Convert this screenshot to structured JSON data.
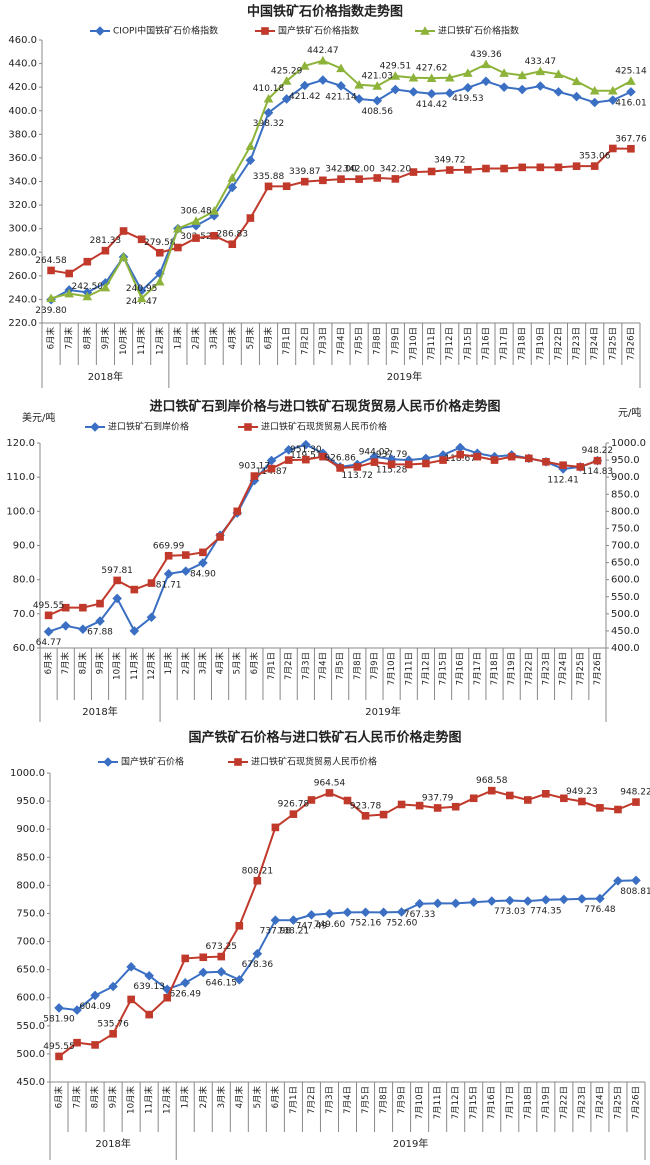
{
  "chart_data": [
    {
      "type": "line",
      "title": "中国铁矿石价格指数走势图",
      "categories": [
        "6月末",
        "7月末",
        "8月末",
        "9月末",
        "10月末",
        "11月末",
        "12月末",
        "1月末",
        "2月末",
        "3月末",
        "4月末",
        "5月末",
        "6月末",
        "7月1日",
        "7月2日",
        "7月3日",
        "7月4日",
        "7月5日",
        "7月8日",
        "7月9日",
        "7月10日",
        "7月11日",
        "7月12日",
        "7月15日",
        "7月16日",
        "7月17日",
        "7月18日",
        "7月19日",
        "7月22日",
        "7月23日",
        "7月24日",
        "7月25日",
        "7月26日"
      ],
      "x_groups": [
        {
          "label": "2018年",
          "size": 7
        },
        {
          "label": "2019年",
          "size": 26
        }
      ],
      "ylim": [
        220,
        460
      ],
      "yticks": [
        {
          "value": 220,
          "label": "220.0"
        },
        {
          "value": 240,
          "label": "240.0"
        },
        {
          "value": 260,
          "label": "260.0"
        },
        {
          "value": 280,
          "label": "280.0"
        },
        {
          "value": 300,
          "label": "300.0"
        },
        {
          "value": 320,
          "label": "320.0"
        },
        {
          "value": 340,
          "label": "340.0"
        },
        {
          "value": 360,
          "label": "360.0"
        },
        {
          "value": 380,
          "label": "380.0"
        },
        {
          "value": 400,
          "label": "400.0"
        },
        {
          "value": 420,
          "label": "420.0"
        },
        {
          "value": 440,
          "label": "440.0"
        },
        {
          "value": 460,
          "label": "460.0"
        }
      ],
      "series": [
        {
          "name": "CIOPI中国铁矿石价格指数",
          "color": "#3a6fc4",
          "marker": "diamond",
          "values": [
            239.8,
            248,
            246,
            254,
            276,
            247.47,
            262,
            300,
            302.52,
            311,
            335,
            358,
            398.32,
            410,
            421.42,
            426,
            421.14,
            410,
            408.56,
            418,
            416,
            414.42,
            415,
            419.53,
            425,
            420,
            418,
            421,
            416,
            412,
            407,
            409,
            416.01
          ],
          "value_labels": [
            "239.80",
            null,
            null,
            null,
            null,
            "247.47",
            null,
            null,
            "302.52",
            null,
            null,
            null,
            "398.32",
            null,
            "421.42",
            null,
            "421.14",
            null,
            "408.56",
            null,
            null,
            "414.42",
            null,
            "419.53",
            null,
            null,
            null,
            null,
            null,
            null,
            null,
            null,
            "416.01"
          ]
        },
        {
          "name": "国产铁矿石价格指数",
          "color": "#c0392b",
          "marker": "square",
          "values": [
            264.58,
            262,
            272,
            281.33,
            298,
            291,
            279.58,
            284,
            292,
            294,
            286.83,
            309,
            335.88,
            336,
            339.87,
            341,
            342,
            342,
            343,
            342.2,
            348,
            348.5,
            349.72,
            350,
            351,
            351,
            352,
            352,
            352,
            353,
            353.06,
            368,
            367.76
          ],
          "value_labels": [
            "264.58",
            null,
            null,
            "281.33",
            null,
            null,
            "279.58",
            null,
            null,
            null,
            "286.83",
            null,
            "335.88",
            null,
            "339.87",
            null,
            "342.00",
            "342.00",
            null,
            "342.20",
            null,
            null,
            "349.72",
            null,
            null,
            null,
            null,
            null,
            null,
            null,
            "353.06",
            null,
            "367.76"
          ]
        },
        {
          "name": "进口铁矿石价格指数",
          "color": "#8db33a",
          "marker": "triangle",
          "values": [
            241,
            245,
            242.5,
            250,
            276,
            240.95,
            255,
            300,
            306.48,
            315,
            343,
            370,
            410.18,
            425.29,
            438,
            442.47,
            436,
            422,
            421.03,
            429.51,
            428,
            427.62,
            428,
            432,
            439.36,
            432,
            430,
            433.47,
            431,
            425,
            417,
            417,
            425.14
          ],
          "value_labels": [
            null,
            null,
            "242.50",
            null,
            null,
            "240.95",
            null,
            null,
            "306.48",
            null,
            null,
            null,
            "410.18",
            "425.29",
            null,
            "442.47",
            null,
            null,
            "421.03",
            "429.51",
            null,
            "427.62",
            null,
            null,
            "439.36",
            null,
            null,
            "433.47",
            null,
            null,
            null,
            null,
            "425.14"
          ]
        }
      ]
    },
    {
      "type": "line",
      "title": "进口铁矿石到岸价格与进口铁矿石现货贸易人民币价格走势图",
      "ylabel": "美元/吨",
      "y2label": "元/吨",
      "categories": [
        "6月末",
        "7月末",
        "8月末",
        "9月末",
        "10月末",
        "11月末",
        "12月末",
        "1月末",
        "2月末",
        "3月末",
        "4月末",
        "5月末",
        "6月末",
        "7月1日",
        "7月2日",
        "7月3日",
        "7月4日",
        "7月5日",
        "7月8日",
        "7月9日",
        "7月10日",
        "7月11日",
        "7月12日",
        "7月15日",
        "7月16日",
        "7月17日",
        "7月18日",
        "7月19日",
        "7月22日",
        "7月23日",
        "7月24日",
        "7月25日",
        "7月26日"
      ],
      "x_groups": [
        {
          "label": "2018年",
          "size": 7
        },
        {
          "label": "2019年",
          "size": 26
        }
      ],
      "ylim": [
        60,
        120
      ],
      "yticks": [
        {
          "value": 60,
          "label": "60.0"
        },
        {
          "value": 70,
          "label": "70.0"
        },
        {
          "value": 80,
          "label": "80.0"
        },
        {
          "value": 90,
          "label": "90.0"
        },
        {
          "value": 100,
          "label": "100.0"
        },
        {
          "value": 110,
          "label": "110.0"
        },
        {
          "value": 120,
          "label": "120.0"
        }
      ],
      "y2lim": [
        400,
        1000
      ],
      "y2ticks": [
        {
          "value": 400,
          "label": "400.0"
        },
        {
          "value": 450,
          "label": "450.0"
        },
        {
          "value": 500,
          "label": "500.0"
        },
        {
          "value": 550,
          "label": "550.0"
        },
        {
          "value": 600,
          "label": "600.0"
        },
        {
          "value": 650,
          "label": "650.0"
        },
        {
          "value": 700,
          "label": "700.0"
        },
        {
          "value": 750,
          "label": "750.0"
        },
        {
          "value": 800,
          "label": "800.0"
        },
        {
          "value": 850,
          "label": "850.0"
        },
        {
          "value": 900,
          "label": "900.0"
        },
        {
          "value": 950,
          "label": "950.0"
        },
        {
          "value": 1000,
          "label": "1000.0"
        }
      ],
      "series": [
        {
          "name": "进口铁矿石到岸价格",
          "color": "#3a6fc4",
          "marker": "diamond",
          "values": [
            64.77,
            66.5,
            65.5,
            67.88,
            74.5,
            65,
            69,
            81.71,
            82.5,
            84.9,
            93,
            99.5,
            109,
            114.87,
            118,
            119.51,
            117,
            113,
            113.72,
            116,
            115.28,
            115,
            115.5,
            116.5,
            118.67,
            117,
            116,
            116.5,
            115.5,
            114.5,
            112.41,
            113,
            114.83
          ],
          "value_labels": [
            "64.77",
            null,
            null,
            "67.88",
            null,
            null,
            null,
            "81.71",
            null,
            "84.90",
            null,
            null,
            null,
            "114.87",
            null,
            "119.51",
            null,
            null,
            "113.72",
            null,
            "115.28",
            null,
            null,
            null,
            "118.67",
            null,
            null,
            null,
            null,
            null,
            "112.41",
            null,
            "114.83"
          ]
        },
        {
          "name": "进口铁矿石现货贸易人民币价格",
          "color": "#c0392b",
          "marker": "square",
          "axis": "y2",
          "values": [
            495.55,
            518,
            518,
            530,
            597.81,
            571,
            590,
            669.99,
            672,
            680,
            725,
            800,
            903.17,
            925,
            950,
            951.3,
            960,
            926.86,
            930,
            944.02,
            937.79,
            937,
            940,
            950,
            966,
            960,
            950,
            960,
            955,
            945,
            935,
            930,
            948.22
          ],
          "value_labels": [
            "495.55",
            null,
            null,
            null,
            "597.81",
            null,
            null,
            "669.99",
            null,
            null,
            null,
            null,
            "903.17",
            null,
            null,
            "951.30",
            null,
            "926.86",
            null,
            "944.02",
            "937.79",
            null,
            null,
            null,
            null,
            null,
            null,
            null,
            null,
            null,
            null,
            null,
            "948.22"
          ]
        }
      ]
    },
    {
      "type": "line",
      "title": "国产铁矿石价格与进口铁矿石人民币价格走势图",
      "categories": [
        "6月末",
        "7月末",
        "8月末",
        "9月末",
        "10月末",
        "11月末",
        "12月末",
        "1月末",
        "2月末",
        "3月末",
        "4月末",
        "5月末",
        "6月末",
        "7月1日",
        "7月2日",
        "7月3日",
        "7月4日",
        "7月5日",
        "7月8日",
        "7月9日",
        "7月10日",
        "7月11日",
        "7月12日",
        "7月15日",
        "7月16日",
        "7月17日",
        "7月18日",
        "7月19日",
        "7月22日",
        "7月23日",
        "7月24日",
        "7月25日",
        "7月26日"
      ],
      "x_groups": [
        {
          "label": "2018年",
          "size": 7
        },
        {
          "label": "2019年",
          "size": 26
        }
      ],
      "ylim": [
        450,
        1000
      ],
      "yticks": [
        {
          "value": 450,
          "label": "450.0"
        },
        {
          "value": 500,
          "label": "500.0"
        },
        {
          "value": 550,
          "label": "550.0"
        },
        {
          "value": 600,
          "label": "600.0"
        },
        {
          "value": 650,
          "label": "650.0"
        },
        {
          "value": 700,
          "label": "700.0"
        },
        {
          "value": 750,
          "label": "750.0"
        },
        {
          "value": 800,
          "label": "800.0"
        },
        {
          "value": 850,
          "label": "850.0"
        },
        {
          "value": 900,
          "label": "900.0"
        },
        {
          "value": 950,
          "label": "950.0"
        },
        {
          "value": 1000,
          "label": "1000.0"
        }
      ],
      "series": [
        {
          "name": "国产铁矿石价格",
          "color": "#3a6fc4",
          "marker": "diamond",
          "values": [
            581.9,
            578,
            604.09,
            620,
            655,
            639.13,
            615,
            626.49,
            645,
            646.15,
            632,
            678.36,
            737.98,
            738.21,
            747.49,
            749.6,
            752,
            752.16,
            752,
            752.6,
            767.33,
            768,
            768,
            770,
            772,
            773.03,
            772,
            774.35,
            775,
            776,
            776.48,
            808,
            808.81
          ],
          "value_labels": [
            "581.90",
            null,
            "604.09",
            null,
            null,
            "639.13",
            null,
            "626.49",
            null,
            "646.15",
            null,
            "678.36",
            "737.98",
            "738.21",
            "747.49",
            "749.60",
            null,
            "752.16",
            null,
            "752.60",
            "767.33",
            null,
            null,
            null,
            null,
            "773.03",
            null,
            "774.35",
            null,
            null,
            "776.48",
            null,
            "808.81"
          ]
        },
        {
          "name": "进口铁矿石现货贸易人民币价格",
          "color": "#c0392b",
          "marker": "square",
          "values": [
            495.55,
            520,
            516,
            535.76,
            597,
            570,
            600,
            669.99,
            672,
            673.25,
            728,
            808.21,
            903.17,
            926.78,
            952,
            964.54,
            951,
            923.78,
            926,
            944,
            942,
            937.79,
            940,
            955,
            968.58,
            960,
            952,
            963,
            955,
            949.23,
            938,
            935,
            948.22
          ],
          "value_labels": [
            "495.55",
            null,
            null,
            "535.76",
            null,
            null,
            null,
            null,
            null,
            "673.25",
            null,
            "808.21",
            null,
            "926.78",
            null,
            "964.54",
            null,
            "923.78",
            null,
            null,
            null,
            "937.79",
            null,
            null,
            "968.58",
            null,
            null,
            null,
            null,
            "949.23",
            null,
            null,
            "948.22"
          ]
        }
      ]
    }
  ]
}
